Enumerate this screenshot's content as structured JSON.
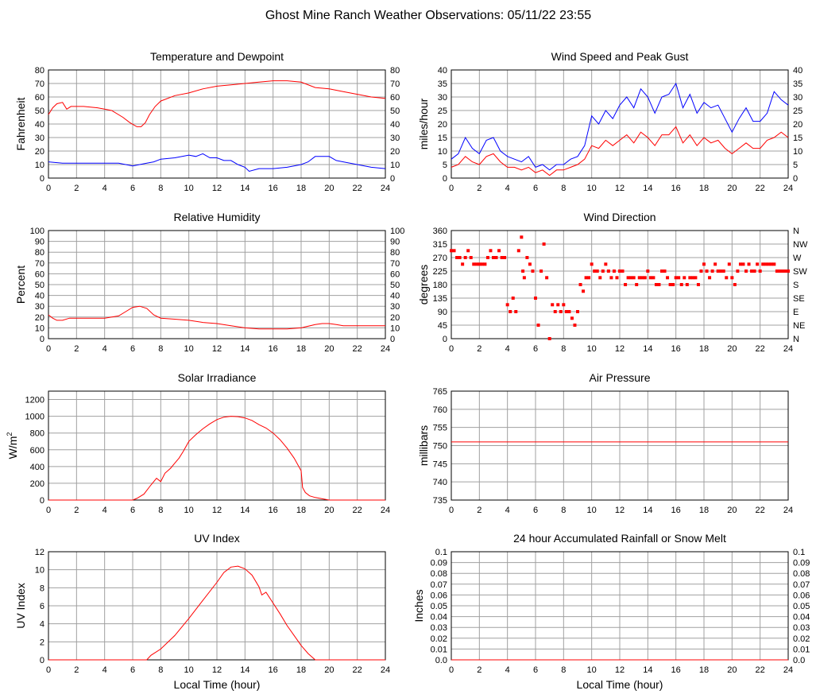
{
  "page_title": "Ghost Mine Ranch Weather Observations: 05/11/22 23:55",
  "colors": {
    "red": "#ff0000",
    "blue": "#0000ff",
    "grid": "#a0a0a0",
    "axis": "#000000"
  },
  "chart_data": [
    {
      "id": "temp",
      "type": "line",
      "title": "Temperature and Dewpoint",
      "xlabel": "",
      "ylabel": "Fahrenheit",
      "xlim": [
        0,
        24
      ],
      "ylim": [
        0,
        80
      ],
      "x_ticks": [
        0,
        2,
        4,
        6,
        8,
        10,
        12,
        14,
        16,
        18,
        20,
        22,
        24
      ],
      "y_ticks": [
        0,
        10,
        20,
        30,
        40,
        50,
        60,
        70,
        80
      ],
      "right_ticks": [
        "0",
        "10",
        "20",
        "30",
        "40",
        "50",
        "60",
        "70",
        "80"
      ],
      "series": [
        {
          "color": "#ff0000",
          "x": [
            0,
            0.3,
            0.6,
            1,
            1.3,
            1.6,
            2.5,
            3.5,
            4.5,
            5.3,
            5.8,
            6.3,
            6.6,
            6.9,
            7.2,
            7.6,
            8,
            9,
            10,
            11,
            12,
            13,
            14,
            15,
            16,
            17,
            18,
            19,
            20,
            21,
            22,
            23,
            24
          ],
          "y": [
            47,
            52,
            55,
            56,
            51,
            53,
            53,
            52,
            50,
            45,
            41,
            38,
            38,
            41,
            47,
            53,
            57,
            61,
            63,
            66,
            68,
            69,
            70,
            71,
            72,
            72,
            71,
            67,
            66,
            64,
            62,
            60,
            59
          ]
        },
        {
          "color": "#0000ff",
          "x": [
            0,
            1,
            2,
            3,
            4,
            5,
            5.5,
            6,
            6.5,
            7,
            7.5,
            8,
            9,
            10,
            10.5,
            11,
            11.5,
            12,
            12.5,
            13,
            13.5,
            14,
            14.3,
            15,
            16,
            17,
            18,
            18.5,
            19,
            20,
            20.5,
            21,
            22,
            23,
            24
          ],
          "y": [
            12,
            11,
            11,
            11,
            11,
            11,
            10,
            9,
            10,
            11,
            12,
            14,
            15,
            17,
            16,
            18,
            15,
            15,
            13,
            13,
            10,
            8,
            5,
            7,
            7,
            8,
            10,
            12,
            16,
            16,
            13,
            12,
            10,
            8,
            7
          ]
        }
      ]
    },
    {
      "id": "wind",
      "type": "line",
      "title": "Wind Speed and Peak Gust",
      "xlabel": "",
      "ylabel": "miles/hour",
      "xlim": [
        0,
        24
      ],
      "ylim": [
        0,
        40
      ],
      "x_ticks": [
        0,
        2,
        4,
        6,
        8,
        10,
        12,
        14,
        16,
        18,
        20,
        22,
        24
      ],
      "y_ticks": [
        0,
        5,
        10,
        15,
        20,
        25,
        30,
        35,
        40
      ],
      "right_ticks": [
        "0",
        "5",
        "10",
        "15",
        "20",
        "25",
        "30",
        "35",
        "40"
      ],
      "series": [
        {
          "color": "#0000ff",
          "x": [
            0,
            0.5,
            1,
            1.5,
            2,
            2.5,
            3,
            3.5,
            4,
            4.5,
            5,
            5.5,
            6,
            6.5,
            7,
            7.5,
            8,
            8.5,
            9,
            9.5,
            10,
            10.5,
            11,
            11.5,
            12,
            12.5,
            13,
            13.5,
            14,
            14.5,
            15,
            15.5,
            16,
            16.5,
            17,
            17.5,
            18,
            18.5,
            19,
            19.5,
            20,
            20.5,
            21,
            21.5,
            22,
            22.5,
            23,
            23.5,
            24
          ],
          "y": [
            7,
            9,
            15,
            11,
            9,
            14,
            15,
            10,
            8,
            7,
            6,
            8,
            4,
            5,
            3,
            5,
            5,
            7,
            8,
            12,
            23,
            20,
            25,
            22,
            27,
            30,
            26,
            33,
            30,
            24,
            30,
            31,
            35,
            26,
            31,
            24,
            28,
            26,
            27,
            22,
            17,
            22,
            26,
            21,
            21,
            24,
            32,
            29,
            27
          ]
        },
        {
          "color": "#ff0000",
          "x": [
            0,
            0.5,
            1,
            1.5,
            2,
            2.5,
            3,
            3.5,
            4,
            4.5,
            5,
            5.5,
            6,
            6.5,
            7,
            7.5,
            8,
            8.5,
            9,
            9.5,
            10,
            10.5,
            11,
            11.5,
            12,
            12.5,
            13,
            13.5,
            14,
            14.5,
            15,
            15.5,
            16,
            16.5,
            17,
            17.5,
            18,
            18.5,
            19,
            19.5,
            20,
            20.5,
            21,
            21.5,
            22,
            22.5,
            23,
            23.5,
            24
          ],
          "y": [
            4,
            5,
            8,
            6,
            5,
            8,
            9,
            6,
            4,
            4,
            3,
            4,
            2,
            3,
            1,
            3,
            3,
            4,
            5,
            7,
            12,
            11,
            14,
            12,
            14,
            16,
            13,
            17,
            15,
            12,
            16,
            16,
            19,
            13,
            16,
            12,
            15,
            13,
            14,
            11,
            9,
            11,
            13,
            11,
            11,
            14,
            15,
            17,
            15
          ]
        }
      ]
    },
    {
      "id": "rh",
      "type": "line",
      "title": "Relative Humidity",
      "xlabel": "",
      "ylabel": "Percent",
      "xlim": [
        0,
        24
      ],
      "ylim": [
        0,
        100
      ],
      "x_ticks": [
        0,
        2,
        4,
        6,
        8,
        10,
        12,
        14,
        16,
        18,
        20,
        22,
        24
      ],
      "y_ticks": [
        0,
        10,
        20,
        30,
        40,
        50,
        60,
        70,
        80,
        90,
        100
      ],
      "right_ticks": [
        "0",
        "10",
        "20",
        "30",
        "40",
        "50",
        "60",
        "70",
        "80",
        "90",
        "100"
      ],
      "series": [
        {
          "color": "#ff0000",
          "x": [
            0,
            0.3,
            0.6,
            1,
            1.5,
            2,
            3,
            4,
            5,
            5.5,
            6,
            6.5,
            7,
            7.5,
            8,
            9,
            10,
            11,
            12,
            13,
            14,
            15,
            16,
            17,
            18,
            19,
            19.5,
            20,
            20.5,
            21,
            22,
            23,
            24
          ],
          "y": [
            22,
            19,
            17,
            17,
            19,
            19,
            19,
            19,
            21,
            25,
            29,
            30,
            28,
            22,
            19,
            18,
            17,
            15,
            14,
            12,
            10,
            9,
            9,
            9,
            10,
            13,
            14,
            14,
            13,
            12,
            12,
            12,
            12
          ]
        }
      ]
    },
    {
      "id": "dir",
      "type": "scatter",
      "title": "Wind Direction",
      "xlabel": "",
      "ylabel": "degrees",
      "xlim": [
        0,
        24
      ],
      "ylim": [
        0,
        360
      ],
      "x_ticks": [
        0,
        2,
        4,
        6,
        8,
        10,
        12,
        14,
        16,
        18,
        20,
        22,
        24
      ],
      "y_ticks": [
        0,
        45,
        90,
        135,
        180,
        225,
        270,
        315,
        360
      ],
      "right_ticks": [
        "N",
        "NE",
        "E",
        "SE",
        "S",
        "SW",
        "W",
        "NW",
        "N"
      ],
      "series": [
        {
          "color": "#ff0000",
          "x": [
            0,
            0.2,
            0.4,
            0.6,
            0.8,
            1,
            1.2,
            1.4,
            1.6,
            1.8,
            2,
            2.2,
            2.4,
            2.6,
            2.8,
            3,
            3.2,
            3.4,
            3.6,
            3.8,
            4,
            4.2,
            4.4,
            4.6,
            4.8,
            5,
            5.1,
            5.2,
            5.4,
            5.6,
            5.8,
            6,
            6.2,
            6.4,
            6.6,
            6.8,
            7,
            7.2,
            7.4,
            7.6,
            7.8,
            8,
            8.2,
            8.4,
            8.6,
            8.8,
            9,
            9.2,
            9.4,
            9.6,
            9.8,
            10,
            10.2,
            10.4,
            10.6,
            10.8,
            11,
            11.2,
            11.4,
            11.6,
            11.8,
            12,
            12.2,
            12.4,
            12.6,
            12.8,
            13,
            13.2,
            13.4,
            13.6,
            13.8,
            14,
            14.2,
            14.4,
            14.6,
            14.8,
            15,
            15.2,
            15.4,
            15.6,
            15.8,
            16,
            16.2,
            16.4,
            16.6,
            16.8,
            17,
            17.2,
            17.4,
            17.6,
            17.8,
            18,
            18.2,
            18.4,
            18.6,
            18.8,
            19,
            19.2,
            19.4,
            19.6,
            19.8,
            20,
            20.2,
            20.4,
            20.6,
            20.8,
            21,
            21.2,
            21.4,
            21.6,
            21.8,
            22,
            22.2,
            22.4,
            22.6,
            22.8,
            23,
            23.2,
            23.4,
            23.6,
            23.8,
            24
          ],
          "y": [
            293,
            293,
            270,
            270,
            248,
            270,
            293,
            270,
            248,
            248,
            248,
            248,
            248,
            270,
            293,
            270,
            270,
            293,
            270,
            270,
            113,
            90,
            135,
            90,
            293,
            338,
            225,
            203,
            270,
            248,
            225,
            135,
            45,
            225,
            315,
            203,
            0,
            113,
            90,
            113,
            90,
            113,
            90,
            90,
            68,
            45,
            90,
            180,
            158,
            203,
            203,
            248,
            225,
            225,
            203,
            225,
            248,
            225,
            203,
            225,
            203,
            225,
            225,
            180,
            203,
            203,
            203,
            180,
            203,
            203,
            203,
            225,
            203,
            203,
            180,
            180,
            225,
            225,
            203,
            180,
            180,
            203,
            203,
            180,
            203,
            180,
            203,
            203,
            203,
            180,
            225,
            248,
            225,
            203,
            225,
            248,
            225,
            225,
            225,
            203,
            248,
            203,
            180,
            225,
            248,
            248,
            225,
            248,
            225,
            225,
            248,
            225,
            248,
            248,
            248,
            248,
            248,
            225,
            225,
            225,
            225,
            225
          ]
        }
      ]
    },
    {
      "id": "solar",
      "type": "line",
      "title": "Solar Irradiance",
      "xlabel": "",
      "ylabel": "W/m",
      "ylabel_superscript": "2",
      "xlim": [
        0,
        24
      ],
      "ylim": [
        0,
        1300
      ],
      "x_ticks": [
        0,
        2,
        4,
        6,
        8,
        10,
        12,
        14,
        16,
        18,
        20,
        22,
        24
      ],
      "y_ticks": [
        0,
        200,
        400,
        600,
        800,
        1000,
        1200
      ],
      "right_ticks": [],
      "series": [
        {
          "color": "#ff0000",
          "x": [
            0,
            6,
            6.3,
            6.8,
            7.3,
            7.7,
            8,
            8.3,
            8.7,
            9,
            9.3,
            9.6,
            10,
            10.5,
            11,
            11.5,
            12,
            12.5,
            13,
            13.5,
            14,
            14.5,
            15,
            15.5,
            16,
            16.5,
            17,
            17.5,
            18,
            18.1,
            18.3,
            18.6,
            19,
            19.5,
            20,
            24
          ],
          "y": [
            0,
            0,
            20,
            70,
            180,
            260,
            220,
            320,
            380,
            440,
            500,
            580,
            700,
            780,
            850,
            910,
            960,
            990,
            1000,
            995,
            980,
            950,
            900,
            860,
            800,
            720,
            620,
            500,
            350,
            150,
            90,
            50,
            30,
            15,
            0,
            0
          ]
        }
      ]
    },
    {
      "id": "press",
      "type": "line",
      "title": "Air Pressure",
      "xlabel": "",
      "ylabel": "millibars",
      "xlim": [
        0,
        24
      ],
      "ylim": [
        735,
        765
      ],
      "x_ticks": [
        0,
        2,
        4,
        6,
        8,
        10,
        12,
        14,
        16,
        18,
        20,
        22,
        24
      ],
      "y_ticks": [
        735,
        740,
        745,
        750,
        755,
        760,
        765
      ],
      "right_ticks": [],
      "series": [
        {
          "color": "#ff0000",
          "x": [
            0,
            24
          ],
          "y": [
            751,
            751
          ]
        }
      ]
    },
    {
      "id": "uv",
      "type": "line",
      "title": "UV Index",
      "xlabel": "Local Time (hour)",
      "ylabel": "UV Index",
      "xlim": [
        0,
        24
      ],
      "ylim": [
        0,
        12
      ],
      "x_ticks": [
        0,
        2,
        4,
        6,
        8,
        10,
        12,
        14,
        16,
        18,
        20,
        22,
        24
      ],
      "y_ticks": [
        0,
        2,
        4,
        6,
        8,
        10,
        12
      ],
      "right_ticks": [],
      "series": [
        {
          "color": "#ff0000",
          "x": [
            0,
            7,
            7.3,
            8,
            9,
            10,
            11,
            12,
            12.5,
            13,
            13.5,
            14,
            14.5,
            15,
            15.2,
            15.5,
            16,
            16.5,
            17,
            17.5,
            18,
            18.5,
            19,
            24
          ],
          "y": [
            0,
            0,
            0.5,
            1.2,
            2.7,
            4.6,
            6.6,
            8.6,
            9.7,
            10.3,
            10.4,
            10.1,
            9.4,
            8.1,
            7.2,
            7.5,
            6.3,
            5.1,
            3.8,
            2.7,
            1.6,
            0.7,
            0,
            0
          ]
        }
      ]
    },
    {
      "id": "rain",
      "type": "line",
      "title": "24 hour Accumulated Rainfall or Snow Melt",
      "xlabel": "Local Time (hour)",
      "ylabel": "Inches",
      "xlim": [
        0,
        24
      ],
      "ylim": [
        0,
        0.1
      ],
      "x_ticks": [
        0,
        2,
        4,
        6,
        8,
        10,
        12,
        14,
        16,
        18,
        20,
        22,
        24
      ],
      "y_ticks": [
        0,
        0.01,
        0.02,
        0.03,
        0.04,
        0.05,
        0.06,
        0.07,
        0.08,
        0.09,
        0.1
      ],
      "right_ticks": [
        "0.0",
        "0.01",
        "0.02",
        "0.03",
        "0.04",
        "0.05",
        "0.06",
        "0.07",
        "0.08",
        "0.09",
        "0.1"
      ],
      "y_tick_labels": [
        "0.0",
        "0.01",
        "0.02",
        "0.03",
        "0.04",
        "0.05",
        "0.06",
        "0.07",
        "0.08",
        "0.09",
        "0.1"
      ],
      "series": [
        {
          "color": "#ff0000",
          "x": [
            0,
            24
          ],
          "y": [
            0,
            0
          ]
        }
      ]
    }
  ]
}
